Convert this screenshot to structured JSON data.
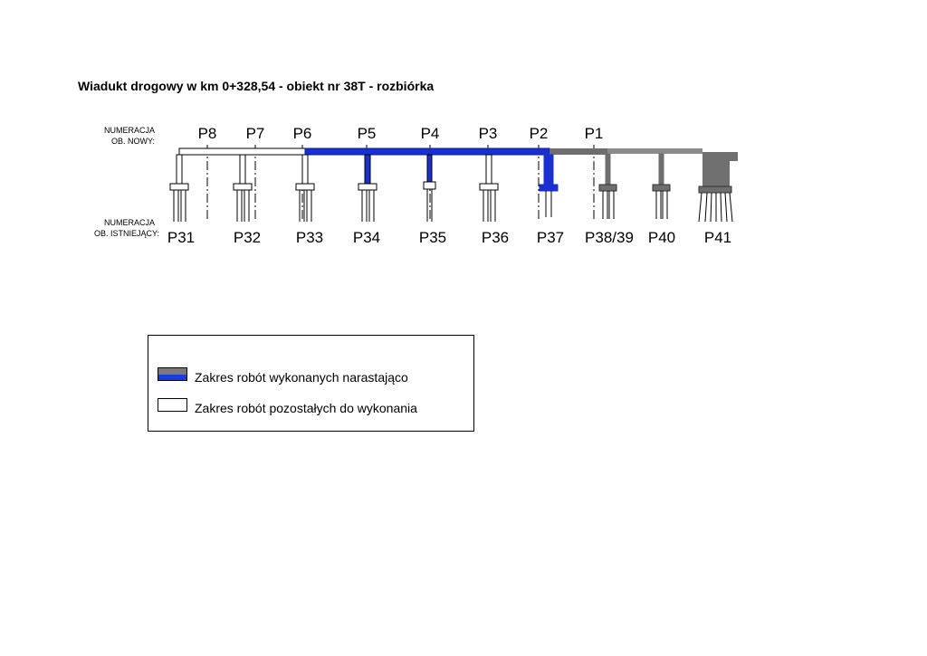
{
  "title": "Wiadukt drogowy w km 0+328,54 - obiekt nr 38T - rozbiórka",
  "diagram": {
    "new_numbering_label": [
      "NUMERACJA",
      "OB. NOWY:"
    ],
    "existing_numbering_label": [
      "NUMERACJA",
      "OB. ISTNIEJĄCY:"
    ],
    "new_piers": [
      "P8",
      "P7",
      "P6",
      "P5",
      "P4",
      "P3",
      "P2",
      "P1"
    ],
    "existing_piers": [
      "P31",
      "P32",
      "P33",
      "P34",
      "P35",
      "P36",
      "P37",
      "P38/39",
      "P40",
      "P41"
    ]
  },
  "legend": {
    "items": [
      {
        "label": "Zakres robót wykonanych narastająco"
      },
      {
        "label": "Zakres robót pozostałych do wykonania"
      }
    ]
  }
}
